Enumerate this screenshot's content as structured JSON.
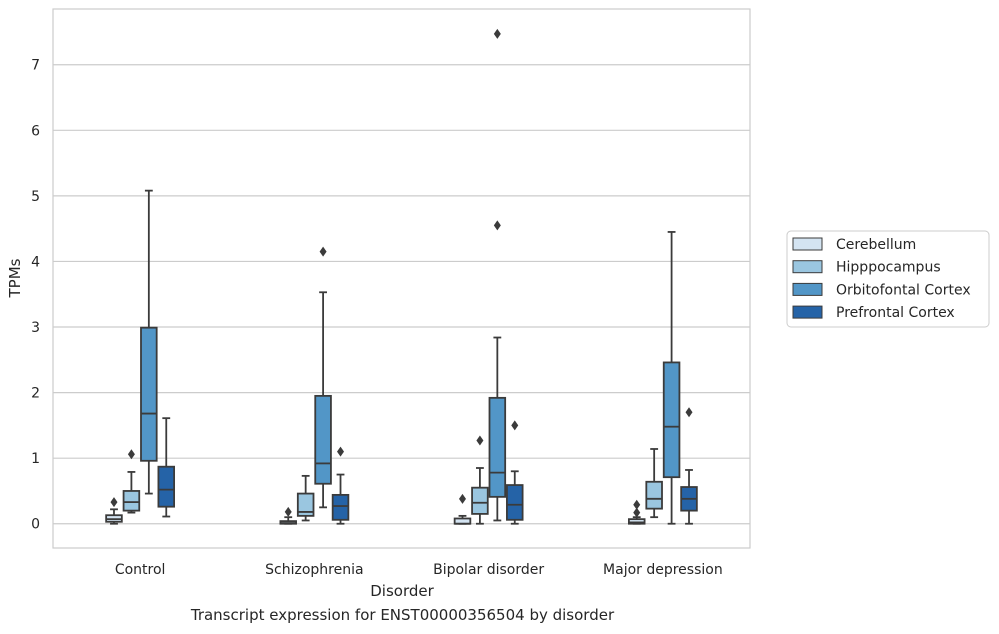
{
  "caption": "Transcript expression for ENST00000356504 by disorder",
  "chart_data": {
    "type": "box",
    "xlabel": "Disorder",
    "ylabel": "TPMs",
    "ylim": [
      -0.37,
      7.85
    ],
    "yticks": [
      0,
      1,
      2,
      3,
      4,
      5,
      6,
      7
    ],
    "grid": "horizontal",
    "legend_position": "right",
    "categories": [
      "Control",
      "Schizophrenia",
      "Bipolar disorder",
      "Major depression"
    ],
    "series": [
      {
        "name": "Cerebellum",
        "color": "#d4e4f2",
        "boxes": [
          {
            "whislo": 0.0,
            "q1": 0.03,
            "med": 0.07,
            "q3": 0.13,
            "whishi": 0.22,
            "fliers": [
              0.33
            ]
          },
          {
            "whislo": 0.0,
            "q1": 0.0,
            "med": 0.01,
            "q3": 0.04,
            "whishi": 0.1,
            "fliers": [
              0.18
            ]
          },
          {
            "whislo": 0.0,
            "q1": 0.0,
            "med": 0.0,
            "q3": 0.08,
            "whishi": 0.12,
            "fliers": [
              0.38
            ]
          },
          {
            "whislo": 0.0,
            "q1": 0.0,
            "med": 0.02,
            "q3": 0.07,
            "whishi": 0.1,
            "fliers": [
              0.17,
              0.29
            ]
          }
        ]
      },
      {
        "name": "Hipppocampus",
        "color": "#9ac6e0",
        "boxes": [
          {
            "whislo": 0.17,
            "q1": 0.2,
            "med": 0.33,
            "q3": 0.5,
            "whishi": 0.79,
            "fliers": [
              1.06
            ]
          },
          {
            "whislo": 0.05,
            "q1": 0.12,
            "med": 0.18,
            "q3": 0.46,
            "whishi": 0.73,
            "fliers": []
          },
          {
            "whislo": 0.0,
            "q1": 0.15,
            "med": 0.32,
            "q3": 0.55,
            "whishi": 0.85,
            "fliers": [
              1.27
            ]
          },
          {
            "whislo": 0.1,
            "q1": 0.23,
            "med": 0.38,
            "q3": 0.64,
            "whishi": 1.14,
            "fliers": []
          }
        ]
      },
      {
        "name": "Orbitofontal Cortex",
        "color": "#5296c7",
        "boxes": [
          {
            "whislo": 0.46,
            "q1": 0.96,
            "med": 1.68,
            "q3": 2.99,
            "whishi": 5.08,
            "fliers": []
          },
          {
            "whislo": 0.25,
            "q1": 0.61,
            "med": 0.92,
            "q3": 1.95,
            "whishi": 3.53,
            "fliers": [
              4.15
            ]
          },
          {
            "whislo": 0.05,
            "q1": 0.41,
            "med": 0.78,
            "q3": 1.92,
            "whishi": 2.84,
            "fliers": [
              4.55,
              7.47
            ]
          },
          {
            "whislo": 0.0,
            "q1": 0.71,
            "med": 1.48,
            "q3": 2.46,
            "whishi": 4.45,
            "fliers": []
          }
        ]
      },
      {
        "name": "Prefrontal Cortex",
        "color": "#2563a7",
        "boxes": [
          {
            "whislo": 0.11,
            "q1": 0.26,
            "med": 0.52,
            "q3": 0.87,
            "whishi": 1.61,
            "fliers": []
          },
          {
            "whislo": 0.0,
            "q1": 0.06,
            "med": 0.27,
            "q3": 0.44,
            "whishi": 0.75,
            "fliers": [
              1.1
            ]
          },
          {
            "whislo": 0.0,
            "q1": 0.06,
            "med": 0.29,
            "q3": 0.59,
            "whishi": 0.8,
            "fliers": [
              1.5
            ]
          },
          {
            "whislo": 0.0,
            "q1": 0.2,
            "med": 0.38,
            "q3": 0.56,
            "whishi": 0.82,
            "fliers": [
              1.7
            ]
          }
        ]
      }
    ]
  }
}
